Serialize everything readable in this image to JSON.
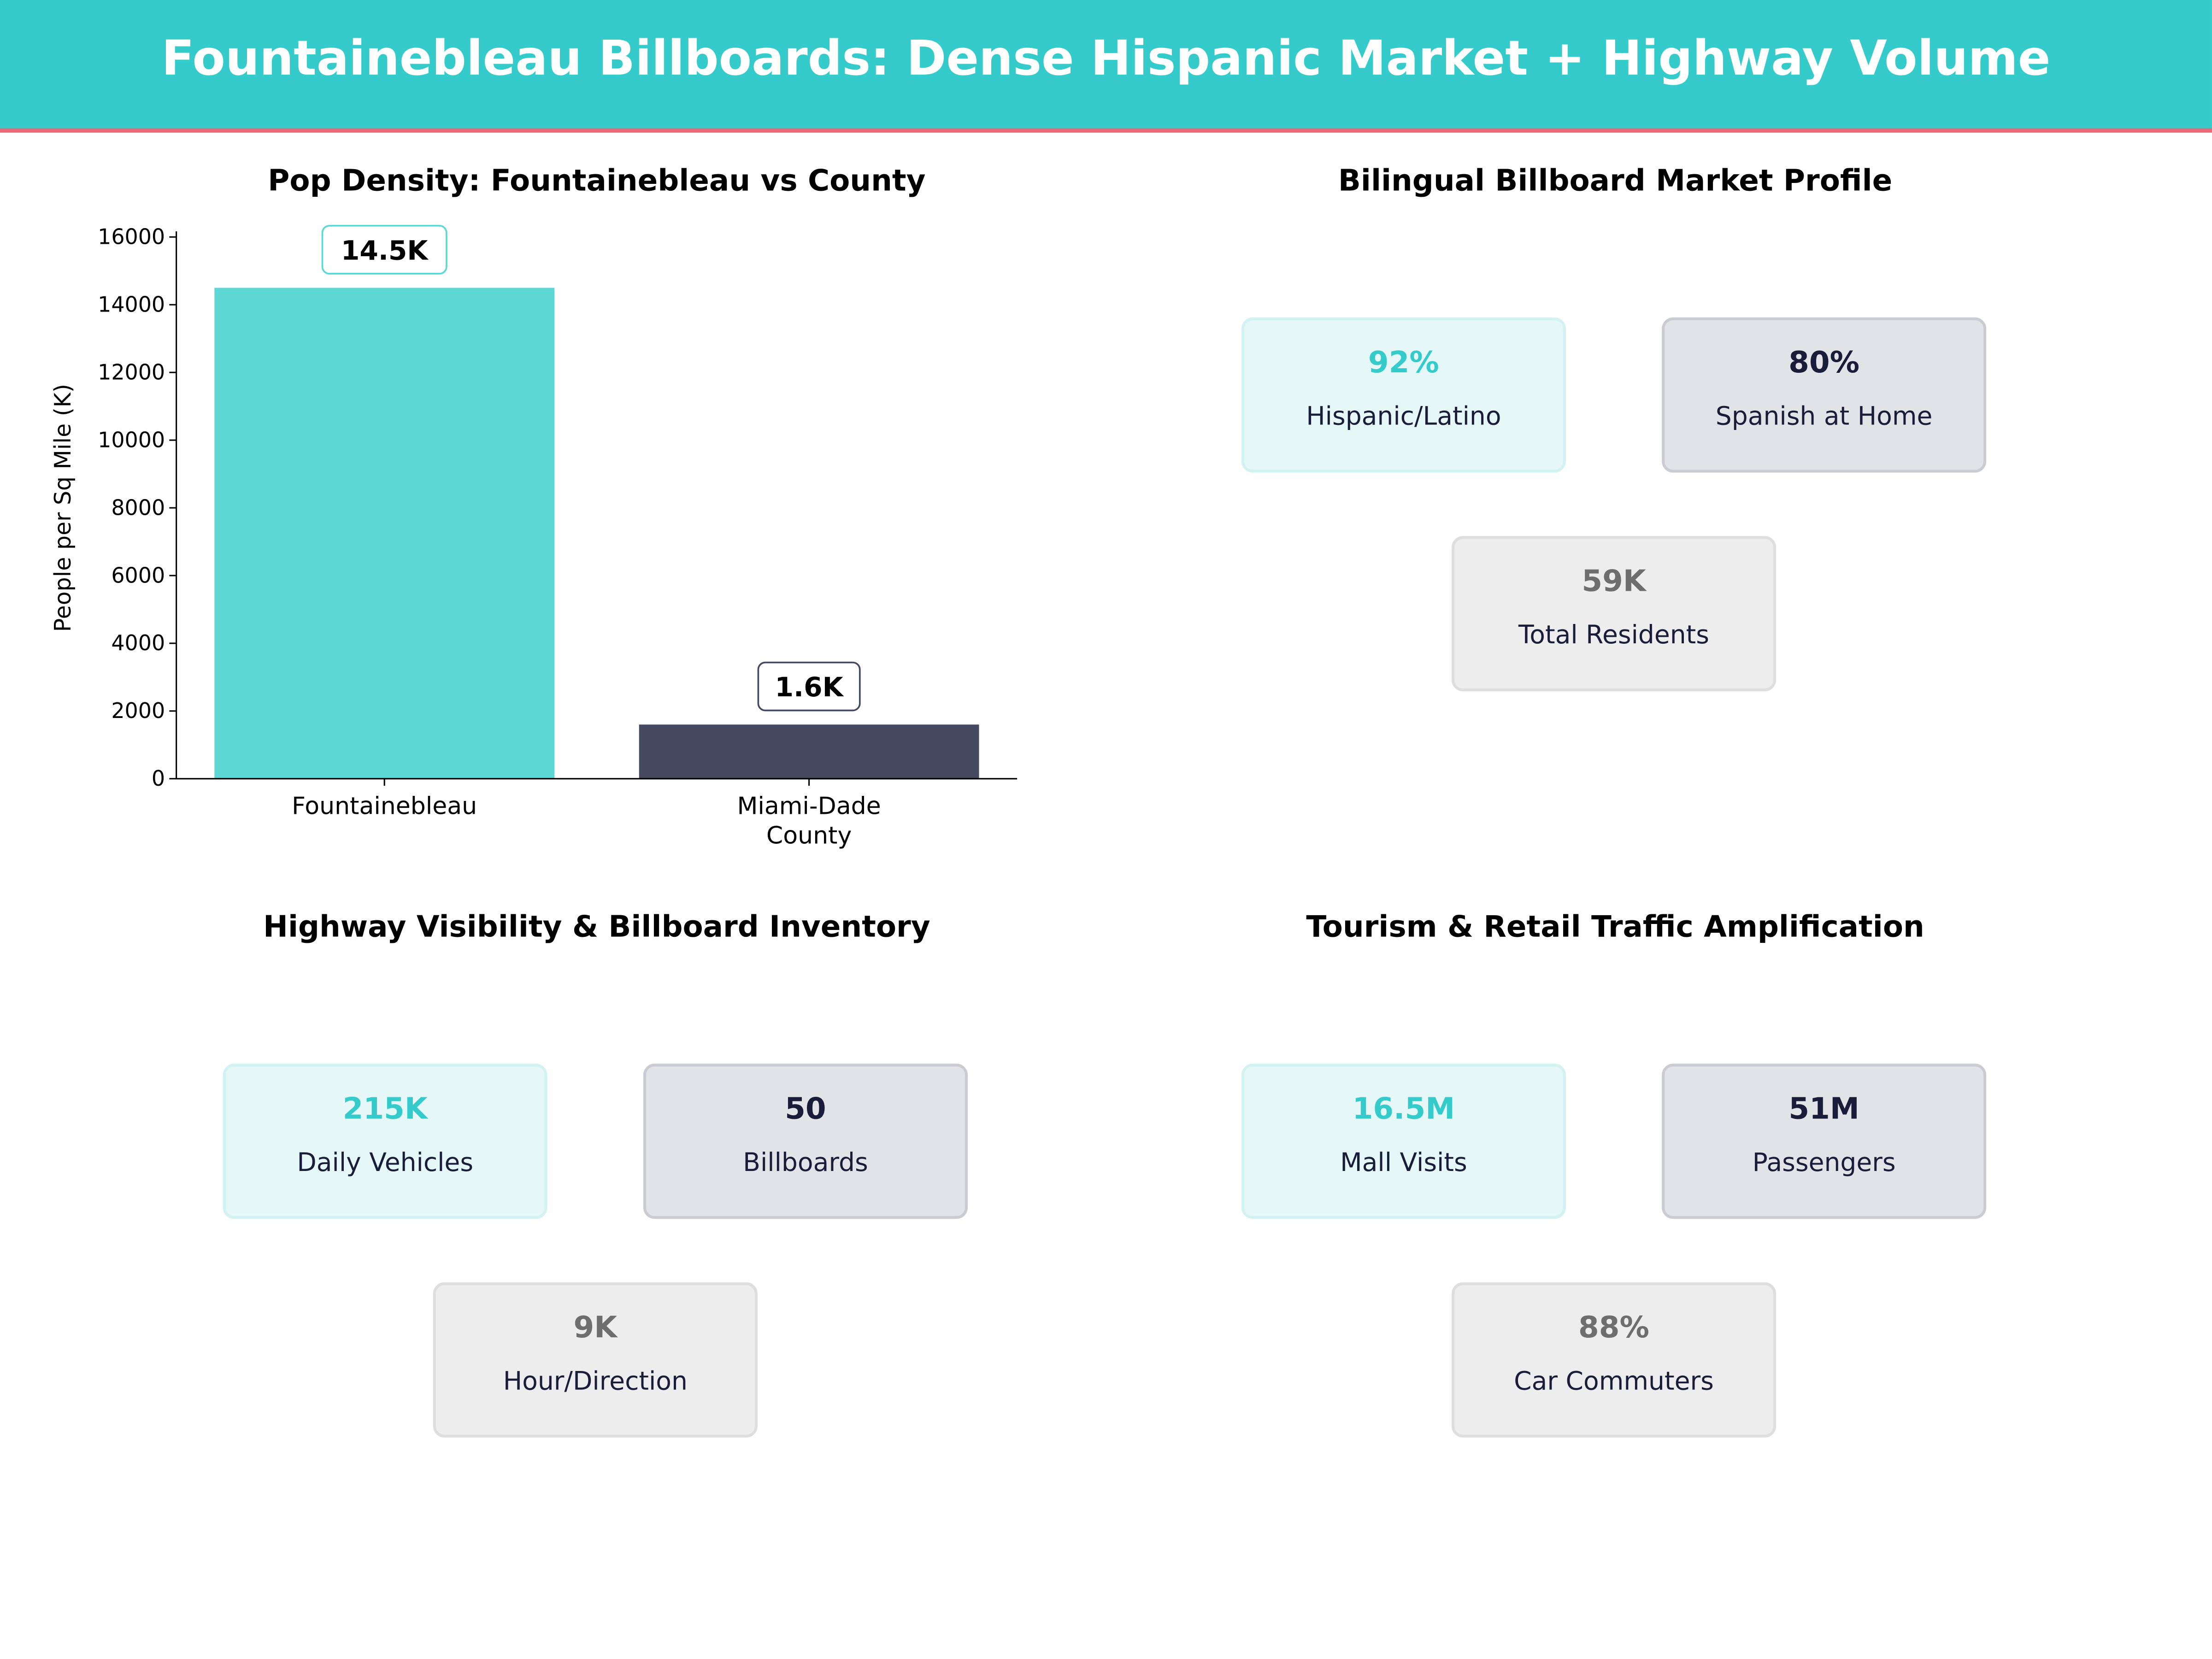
{
  "header": {
    "title": "Fountainebleau Billboards: Dense Hispanic Market + Highway Volume",
    "accent": "#35CBCB",
    "rule_color": "#E8697A"
  },
  "chart_data": {
    "type": "bar",
    "title": "Pop Density: Fountainebleau vs County",
    "categories": [
      "Fountainebleau",
      "Miami-Dade County"
    ],
    "category_lines": [
      [
        "Fountainebleau"
      ],
      [
        "Miami-Dade",
        "County"
      ]
    ],
    "values": [
      14500,
      1600
    ],
    "data_labels": [
      "14.5K",
      "1.6K"
    ],
    "colors": [
      "#5DD8D4",
      "#454A61"
    ],
    "xlabel": "",
    "ylabel": "People per Sq Mile (K)",
    "ylim": [
      0,
      16000
    ],
    "yticks": [
      0,
      2000,
      4000,
      6000,
      8000,
      10000,
      12000,
      14000,
      16000
    ],
    "grid": false
  },
  "panels": [
    {
      "title": "Bilingual Billboard Market Profile",
      "cards": [
        {
          "value": "92%",
          "label": "Hispanic/Latino"
        },
        {
          "value": "80%",
          "label": "Spanish at Home"
        },
        {
          "value": "59K",
          "label": "Total Residents"
        }
      ]
    },
    {
      "title": "Highway Visibility & Billboard Inventory",
      "cards": [
        {
          "value": "215K",
          "label": "Daily Vehicles"
        },
        {
          "value": "50",
          "label": "Billboards"
        },
        {
          "value": "9K",
          "label": "Hour/Direction"
        }
      ]
    },
    {
      "title": "Tourism & Retail Traffic Amplification",
      "cards": [
        {
          "value": "16.5M",
          "label": "Mall Visits"
        },
        {
          "value": "51M",
          "label": "Passengers"
        },
        {
          "value": "88%",
          "label": "Car Commuters"
        }
      ]
    }
  ]
}
